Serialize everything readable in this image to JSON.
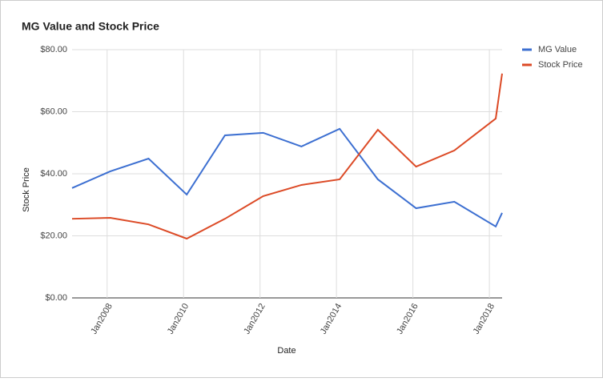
{
  "chart_data": {
    "type": "line",
    "title": "MG Value and Stock Price",
    "x_label": "Date",
    "y_label": "Stock Price",
    "x": [
      "2007-02",
      "2008-02",
      "2009-02",
      "2010-02",
      "2011-02",
      "2012-02",
      "2013-02",
      "2014-02",
      "2015-02",
      "2016-02",
      "2017-02",
      "2018-03",
      "2018-05"
    ],
    "series": [
      {
        "name": "MG Value",
        "color": "#3c6fd1",
        "values": [
          35.4,
          40.8,
          44.9,
          33.3,
          52.4,
          53.2,
          48.8,
          54.5,
          38.2,
          28.9,
          31.0,
          23.0,
          27.4
        ]
      },
      {
        "name": "Stock Price",
        "color": "#dc4a26",
        "values": [
          25.5,
          25.8,
          23.7,
          19.1,
          25.5,
          32.8,
          36.4,
          38.2,
          54.2,
          42.3,
          47.5,
          57.8,
          72.3
        ]
      }
    ],
    "xlim": [
      "2007-02",
      "2018-05"
    ],
    "xticks": [
      {
        "value": "2008-01",
        "label": "Jan2008"
      },
      {
        "value": "2010-01",
        "label": "Jan2010"
      },
      {
        "value": "2012-01",
        "label": "Jan2012"
      },
      {
        "value": "2014-01",
        "label": "Jan2014"
      },
      {
        "value": "2016-01",
        "label": "Jan2016"
      },
      {
        "value": "2018-01",
        "label": "Jan2018"
      }
    ],
    "ylim": [
      0,
      80
    ],
    "yticks": [
      {
        "value": 0,
        "label": "$0.00"
      },
      {
        "value": 20,
        "label": "$20.00"
      },
      {
        "value": 40,
        "label": "$40.00"
      },
      {
        "value": 60,
        "label": "$60.00"
      },
      {
        "value": 80,
        "label": "$80.00"
      }
    ],
    "grid": true,
    "legend": "right"
  }
}
